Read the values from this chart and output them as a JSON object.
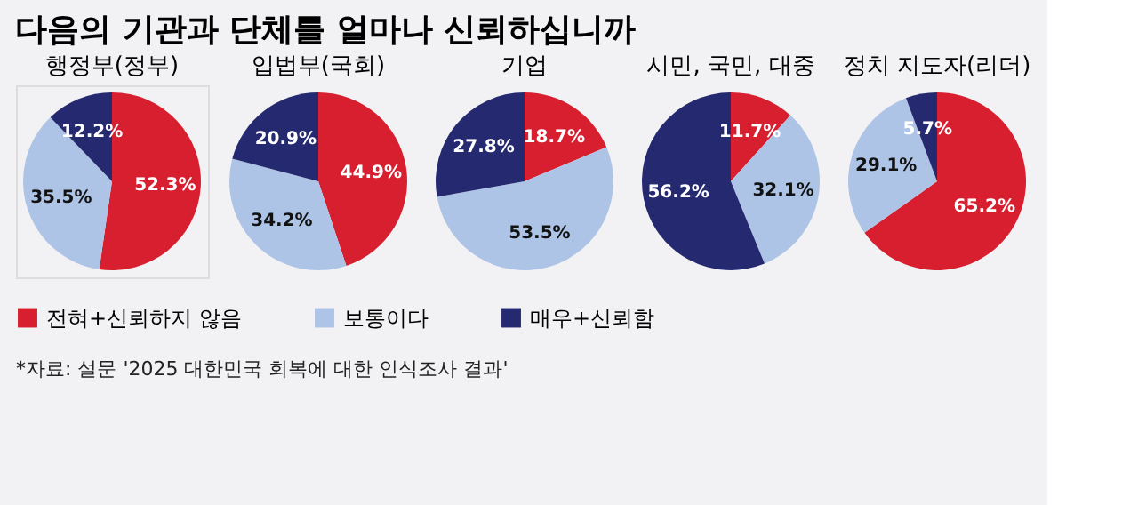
{
  "chart_data": [
    {
      "type": "pie",
      "title": "행정부(정부)",
      "categories": [
        "전혀+신뢰하지 않음",
        "보통이다",
        "매우+신뢰함"
      ],
      "values": [
        52.3,
        35.5,
        12.2
      ],
      "value_labels": [
        "52.3%",
        "35.5%",
        "12.2%"
      ],
      "colors": [
        "#d71f30",
        "#aec4e6",
        "#25296f"
      ],
      "legend": "bottom",
      "annotations": [
        "다음의 기관과 단체를 얼마나 신뢰하십니까",
        "*자료: 설문 '2025 대한민국 회복에 대한 인식조사 결과'"
      ]
    },
    {
      "type": "pie",
      "title": "입법부(국회)",
      "categories": [
        null,
        null,
        null
      ],
      "values": [
        44.9,
        34.2,
        20.9
      ],
      "value_labels": [
        "44.9%",
        "34.2%",
        "20.9%"
      ],
      "colors": [
        "#d71f30",
        "#aec4e6",
        "#25296f"
      ]
    },
    {
      "type": "pie",
      "title": "기업",
      "categories": [
        null,
        null,
        null
      ],
      "values": [
        18.7,
        53.5,
        27.8
      ],
      "value_labels": [
        "18.7%",
        "53.5%",
        "27.8%"
      ],
      "colors": [
        "#d71f30",
        "#aec4e6",
        "#25296f"
      ]
    },
    {
      "type": "pie",
      "title": "시민, 국민, 대중",
      "categories": [
        null,
        null,
        null
      ],
      "values": [
        11.7,
        32.1,
        56.2
      ],
      "value_labels": [
        "11.7%",
        "32.1%",
        "56.2%"
      ],
      "colors": [
        "#d71f30",
        "#aec4e6",
        "#25296f"
      ]
    },
    {
      "type": "pie",
      "title": "정치 지도자(리더)",
      "categories": [
        null,
        null,
        null
      ],
      "values": [
        65.2,
        29.1,
        5.7
      ],
      "value_labels": [
        "65.2%",
        "29.1%",
        "5.7%"
      ],
      "colors": [
        "#d71f30",
        "#aec4e6",
        "#25296f"
      ]
    }
  ]
}
